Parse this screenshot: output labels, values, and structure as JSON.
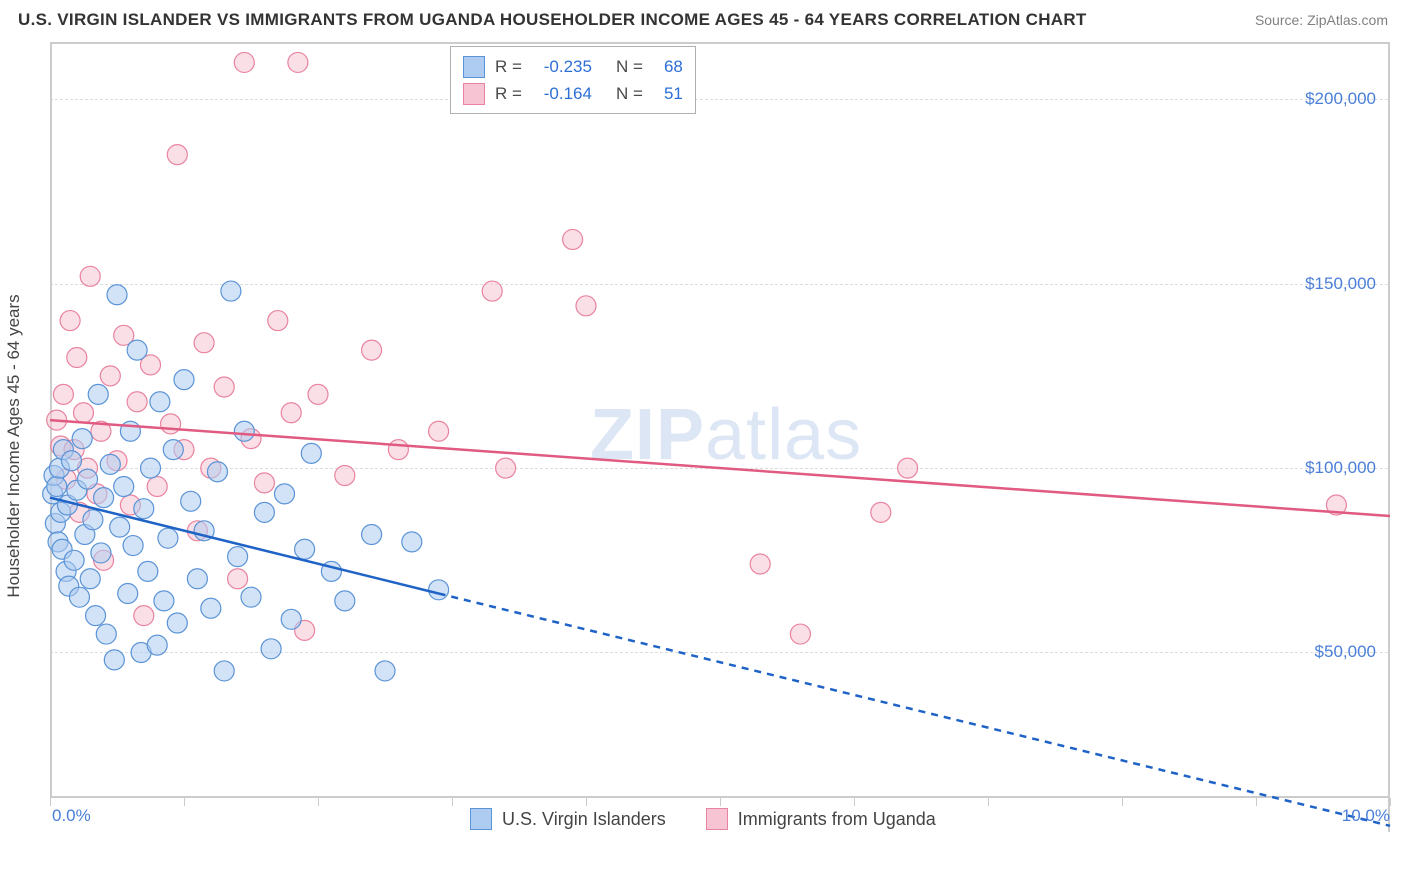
{
  "title": "U.S. VIRGIN ISLANDER VS IMMIGRANTS FROM UGANDA HOUSEHOLDER INCOME AGES 45 - 64 YEARS CORRELATION CHART",
  "source": "Source: ZipAtlas.com",
  "watermark_pre": "ZIP",
  "watermark_post": "atlas",
  "y_axis_title": "Householder Income Ages 45 - 64 years",
  "colors": {
    "series_blue_fill": "#aeccf1",
    "series_blue_stroke": "#5a93d6",
    "series_pink_fill": "#f6c4d2",
    "series_pink_stroke": "#e9839f",
    "trend_blue": "#1f63c7",
    "trend_pink": "#e15a81",
    "grid": "#dddddd",
    "axis": "#cccccc",
    "tick_text": "#4a7fd8",
    "title_text": "#333333",
    "source_text": "#808080",
    "watermark": "#dce6f4",
    "background": "#ffffff"
  },
  "chart": {
    "type": "scatter",
    "xlim": [
      0.0,
      10.0
    ],
    "ylim": [
      10000,
      215000
    ],
    "y_ticks": [
      50000,
      100000,
      150000,
      200000
    ],
    "y_tick_labels": [
      "$50,000",
      "$100,000",
      "$150,000",
      "$200,000"
    ],
    "x_ticks": [
      0.0,
      1.0,
      2.0,
      3.0,
      4.0,
      5.0,
      6.0,
      7.0,
      8.0,
      9.0,
      10.0
    ],
    "x_tick_labels_visible": {
      "0.0": "0.0%",
      "10.0": "10.0%"
    },
    "marker_radius": 10,
    "marker_fill_opacity": 0.55,
    "trend_line_width": 2.5
  },
  "legend_stats": {
    "rows": [
      {
        "r_label": "R =",
        "r_value": "-0.235",
        "n_label": "N =",
        "n_value": "68",
        "swatch": "blue"
      },
      {
        "r_label": "R =",
        "r_value": "-0.164",
        "n_label": "N =",
        "n_value": "51",
        "swatch": "pink"
      }
    ]
  },
  "bottom_legend": {
    "items": [
      {
        "label": "U.S. Virgin Islanders",
        "swatch": "blue"
      },
      {
        "label": "Immigrants from Uganda",
        "swatch": "pink"
      }
    ]
  },
  "trend_lines": {
    "blue": {
      "solid": [
        [
          0.0,
          92000
        ],
        [
          2.9,
          66000
        ]
      ],
      "dashed": [
        [
          2.9,
          66000
        ],
        [
          10.0,
          3000
        ]
      ]
    },
    "pink": {
      "solid": [
        [
          0.0,
          113000
        ],
        [
          10.0,
          87000
        ]
      ]
    }
  },
  "series_blue": [
    [
      0.02,
      93000
    ],
    [
      0.03,
      98000
    ],
    [
      0.04,
      85000
    ],
    [
      0.05,
      95000
    ],
    [
      0.06,
      80000
    ],
    [
      0.07,
      100000
    ],
    [
      0.08,
      88000
    ],
    [
      0.09,
      78000
    ],
    [
      0.1,
      105000
    ],
    [
      0.12,
      72000
    ],
    [
      0.13,
      90000
    ],
    [
      0.14,
      68000
    ],
    [
      0.16,
      102000
    ],
    [
      0.18,
      75000
    ],
    [
      0.2,
      94000
    ],
    [
      0.22,
      65000
    ],
    [
      0.24,
      108000
    ],
    [
      0.26,
      82000
    ],
    [
      0.28,
      97000
    ],
    [
      0.3,
      70000
    ],
    [
      0.32,
      86000
    ],
    [
      0.34,
      60000
    ],
    [
      0.36,
      120000
    ],
    [
      0.38,
      77000
    ],
    [
      0.4,
      92000
    ],
    [
      0.42,
      55000
    ],
    [
      0.45,
      101000
    ],
    [
      0.48,
      48000
    ],
    [
      0.5,
      147000
    ],
    [
      0.52,
      84000
    ],
    [
      0.55,
      95000
    ],
    [
      0.58,
      66000
    ],
    [
      0.6,
      110000
    ],
    [
      0.62,
      79000
    ],
    [
      0.65,
      132000
    ],
    [
      0.68,
      50000
    ],
    [
      0.7,
      89000
    ],
    [
      0.73,
      72000
    ],
    [
      0.75,
      100000
    ],
    [
      0.8,
      52000
    ],
    [
      0.82,
      118000
    ],
    [
      0.85,
      64000
    ],
    [
      0.88,
      81000
    ],
    [
      0.92,
      105000
    ],
    [
      0.95,
      58000
    ],
    [
      1.0,
      124000
    ],
    [
      1.05,
      91000
    ],
    [
      1.1,
      70000
    ],
    [
      1.15,
      83000
    ],
    [
      1.2,
      62000
    ],
    [
      1.25,
      99000
    ],
    [
      1.3,
      45000
    ],
    [
      1.35,
      148000
    ],
    [
      1.4,
      76000
    ],
    [
      1.45,
      110000
    ],
    [
      1.5,
      65000
    ],
    [
      1.6,
      88000
    ],
    [
      1.65,
      51000
    ],
    [
      1.75,
      93000
    ],
    [
      1.8,
      59000
    ],
    [
      1.9,
      78000
    ],
    [
      1.95,
      104000
    ],
    [
      2.1,
      72000
    ],
    [
      2.2,
      64000
    ],
    [
      2.4,
      82000
    ],
    [
      2.5,
      45000
    ],
    [
      2.7,
      80000
    ],
    [
      2.9,
      67000
    ]
  ],
  "series_pink": [
    [
      0.05,
      113000
    ],
    [
      0.08,
      106000
    ],
    [
      0.1,
      120000
    ],
    [
      0.12,
      97000
    ],
    [
      0.15,
      140000
    ],
    [
      0.18,
      105000
    ],
    [
      0.2,
      130000
    ],
    [
      0.22,
      88000
    ],
    [
      0.25,
      115000
    ],
    [
      0.28,
      100000
    ],
    [
      0.3,
      152000
    ],
    [
      0.35,
      93000
    ],
    [
      0.38,
      110000
    ],
    [
      0.4,
      75000
    ],
    [
      0.45,
      125000
    ],
    [
      0.5,
      102000
    ],
    [
      0.55,
      136000
    ],
    [
      0.6,
      90000
    ],
    [
      0.65,
      118000
    ],
    [
      0.7,
      60000
    ],
    [
      0.75,
      128000
    ],
    [
      0.8,
      95000
    ],
    [
      0.9,
      112000
    ],
    [
      0.95,
      185000
    ],
    [
      1.0,
      105000
    ],
    [
      1.1,
      83000
    ],
    [
      1.15,
      134000
    ],
    [
      1.2,
      100000
    ],
    [
      1.3,
      122000
    ],
    [
      1.4,
      70000
    ],
    [
      1.45,
      210000
    ],
    [
      1.5,
      108000
    ],
    [
      1.6,
      96000
    ],
    [
      1.7,
      140000
    ],
    [
      1.8,
      115000
    ],
    [
      1.85,
      210000
    ],
    [
      1.9,
      56000
    ],
    [
      2.0,
      120000
    ],
    [
      2.2,
      98000
    ],
    [
      2.4,
      132000
    ],
    [
      2.6,
      105000
    ],
    [
      2.9,
      110000
    ],
    [
      3.3,
      148000
    ],
    [
      3.4,
      100000
    ],
    [
      3.9,
      162000
    ],
    [
      4.0,
      144000
    ],
    [
      5.3,
      74000
    ],
    [
      5.6,
      55000
    ],
    [
      6.2,
      88000
    ],
    [
      6.4,
      100000
    ],
    [
      9.6,
      90000
    ]
  ]
}
